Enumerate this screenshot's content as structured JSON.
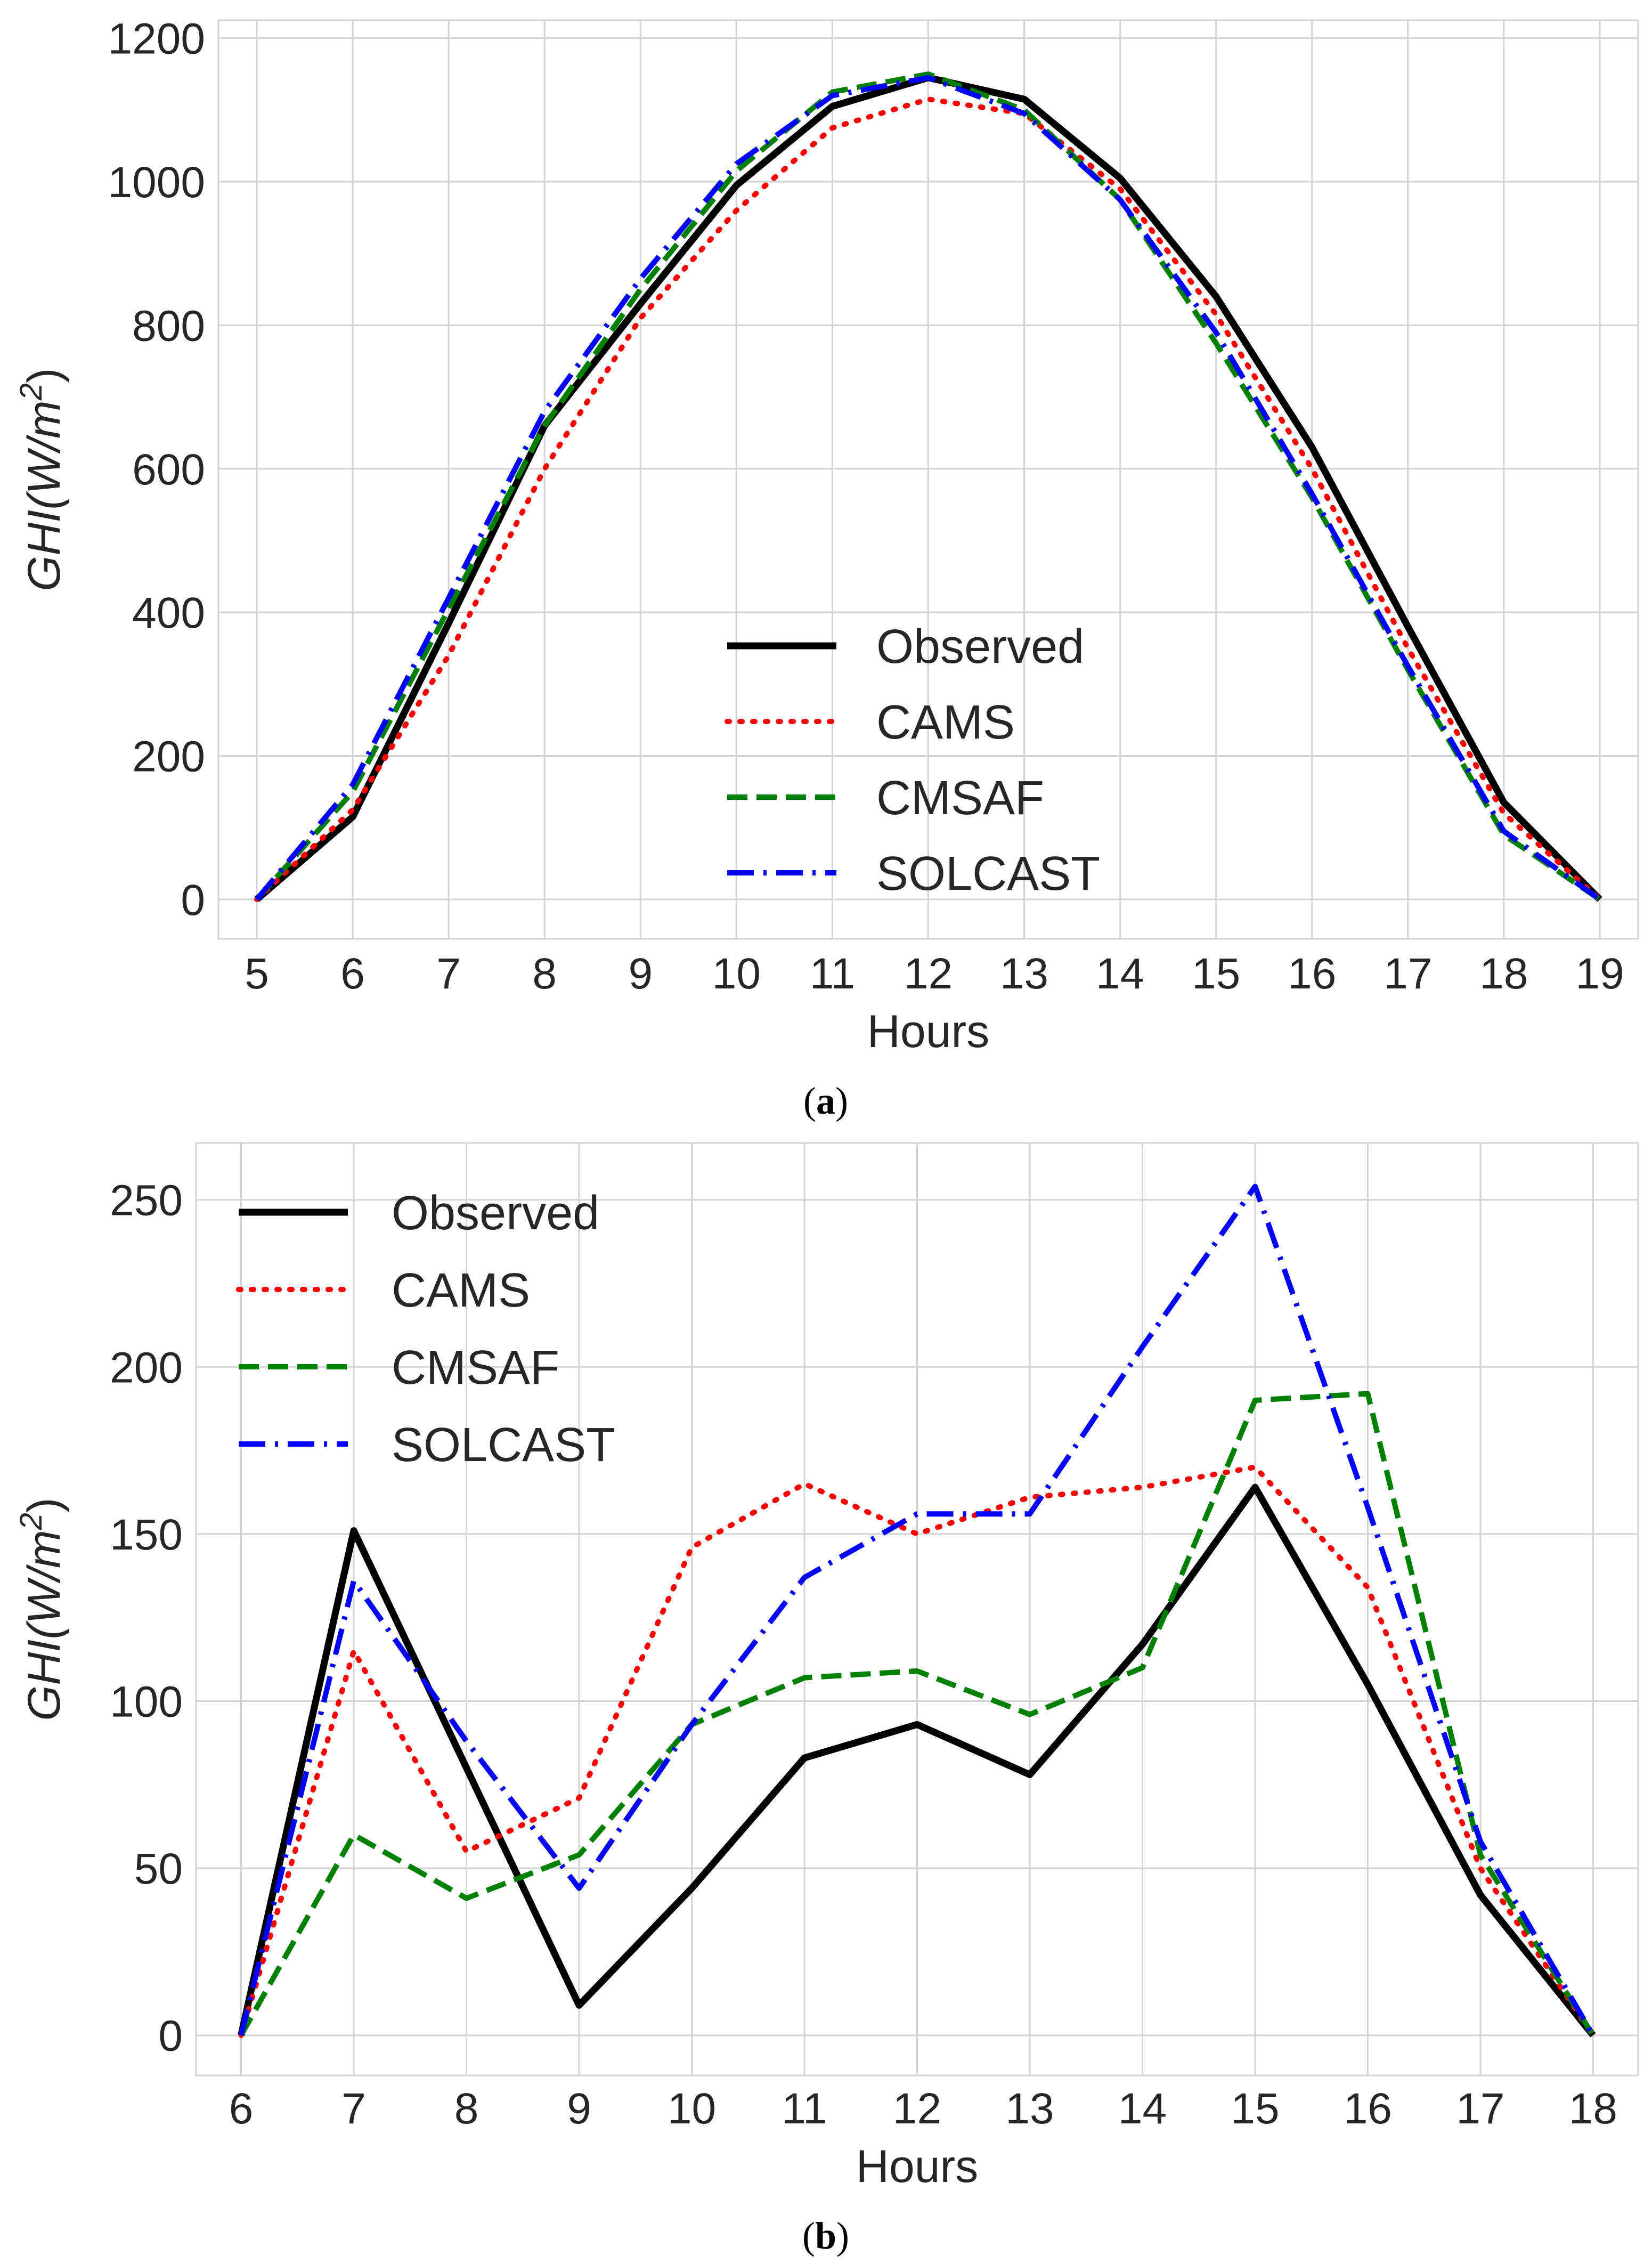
{
  "chart_data": [
    {
      "type": "line",
      "panel": "a",
      "caption": "(a)",
      "caption_letter": "a",
      "xlabel": "Hours",
      "ylabel": "GHI(W/m²)",
      "ylabel_parts": {
        "base": "GHI(W/m",
        "sup": "2",
        "close": ")"
      },
      "x": [
        5,
        6,
        7,
        8,
        9,
        10,
        11,
        12,
        13,
        14,
        15,
        16,
        17,
        18,
        19
      ],
      "xlim": [
        4.6,
        19.4
      ],
      "ylim": [
        -55,
        1225
      ],
      "xticks": [
        5,
        6,
        7,
        8,
        9,
        10,
        11,
        12,
        13,
        14,
        15,
        16,
        17,
        18,
        19
      ],
      "yticks": [
        0,
        200,
        400,
        600,
        800,
        1000,
        1200
      ],
      "legend_position": "lower center",
      "series": [
        {
          "name": "Observed",
          "color": "#000000",
          "style": "solid",
          "values": [
            0,
            115,
            385,
            660,
            830,
            995,
            1105,
            1145,
            1115,
            1005,
            840,
            630,
            380,
            135,
            0
          ]
        },
        {
          "name": "CAMS",
          "color": "#ff0000",
          "style": "dotted",
          "values": [
            0,
            125,
            340,
            600,
            810,
            960,
            1075,
            1115,
            1095,
            990,
            815,
            600,
            350,
            120,
            0
          ]
        },
        {
          "name": "CMSAF",
          "color": "#008000",
          "style": "dashed",
          "values": [
            0,
            150,
            405,
            660,
            850,
            1015,
            1125,
            1150,
            1100,
            975,
            775,
            560,
            320,
            90,
            0
          ]
        },
        {
          "name": "SOLCAST",
          "color": "#0000ff",
          "style": "dashdot",
          "values": [
            0,
            160,
            420,
            680,
            865,
            1025,
            1120,
            1145,
            1095,
            975,
            790,
            565,
            325,
            95,
            0
          ]
        }
      ]
    },
    {
      "type": "line",
      "panel": "b",
      "caption": "(b)",
      "caption_letter": "b",
      "xlabel": "Hours",
      "ylabel": "GHI(W/m²)",
      "ylabel_parts": {
        "base": "GHI(W/m",
        "sup": "2",
        "close": ")"
      },
      "x": [
        6,
        7,
        8,
        9,
        10,
        11,
        12,
        13,
        14,
        15,
        16,
        17,
        18
      ],
      "xlim": [
        5.6,
        18.4
      ],
      "ylim": [
        -12,
        267
      ],
      "xticks": [
        6,
        7,
        8,
        9,
        10,
        11,
        12,
        13,
        14,
        15,
        16,
        17,
        18
      ],
      "yticks": [
        0,
        50,
        100,
        150,
        200,
        250
      ],
      "legend_position": "upper left",
      "series": [
        {
          "name": "Observed",
          "color": "#000000",
          "style": "solid",
          "values": [
            0,
            151,
            80,
            9,
            44,
            83,
            93,
            78,
            117,
            164,
            105,
            42,
            0
          ]
        },
        {
          "name": "CAMS",
          "color": "#ff0000",
          "style": "dotted",
          "values": [
            0,
            115,
            55,
            71,
            146,
            165,
            150,
            161,
            164,
            170,
            134,
            50,
            0
          ]
        },
        {
          "name": "CMSAF",
          "color": "#008000",
          "style": "dashed",
          "values": [
            0,
            60,
            41,
            54,
            93,
            107,
            109,
            96,
            110,
            190,
            192,
            54,
            0
          ]
        },
        {
          "name": "SOLCAST",
          "color": "#0000ff",
          "style": "dashdot",
          "values": [
            0,
            136,
            88,
            44,
            93,
            137,
            156,
            156,
            206,
            254,
            158,
            58,
            0
          ]
        }
      ]
    }
  ]
}
